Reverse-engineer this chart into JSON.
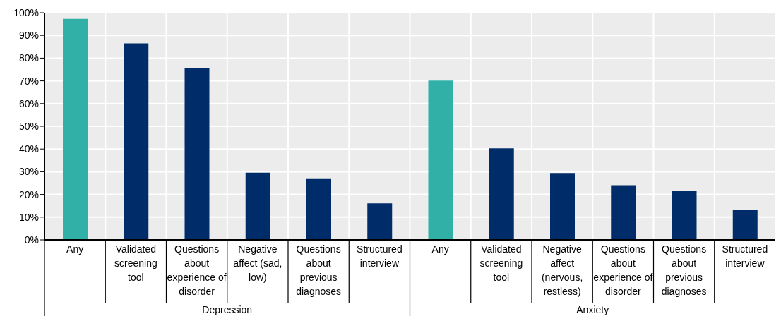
{
  "chart_data": {
    "type": "bar",
    "categories": [
      "Any",
      "Validated screening tool",
      "Questions about experience of disorder",
      "Negative affect (sad, low)",
      "Questions about previous diagnoses",
      "Structured interview",
      "Any",
      "Validated screening tool",
      "Negative affect (nervous, restless)",
      "Questions about experience of disorder",
      "Questions about previous diagnoses",
      "Structured interview"
    ],
    "values": [
      97.3,
      86.5,
      75.5,
      29.6,
      26.8,
      16.1,
      70.1,
      40.3,
      29.4,
      24.1,
      21.4,
      13.2
    ],
    "colors": [
      "#31b0a7",
      "#002d6a",
      "#002d6a",
      "#002d6a",
      "#002d6a",
      "#002d6a",
      "#31b0a7",
      "#002d6a",
      "#002d6a",
      "#002d6a",
      "#002d6a",
      "#002d6a"
    ],
    "ylim": [
      0,
      100
    ],
    "yticks": [
      {
        "value": 0,
        "label": "0%"
      },
      {
        "value": 10,
        "label": "10%"
      },
      {
        "value": 20,
        "label": "20%"
      },
      {
        "value": 30,
        "label": "30%"
      },
      {
        "value": 40,
        "label": "40%"
      },
      {
        "value": 50,
        "label": "50%"
      },
      {
        "value": 60,
        "label": "60%"
      },
      {
        "value": 70,
        "label": "70%"
      },
      {
        "value": 80,
        "label": "80%"
      },
      {
        "value": 90,
        "label": "90%"
      },
      {
        "value": 100,
        "label": "100%"
      }
    ],
    "grid": true,
    "annotations": [
      "Depression",
      "Anxiety"
    ]
  }
}
